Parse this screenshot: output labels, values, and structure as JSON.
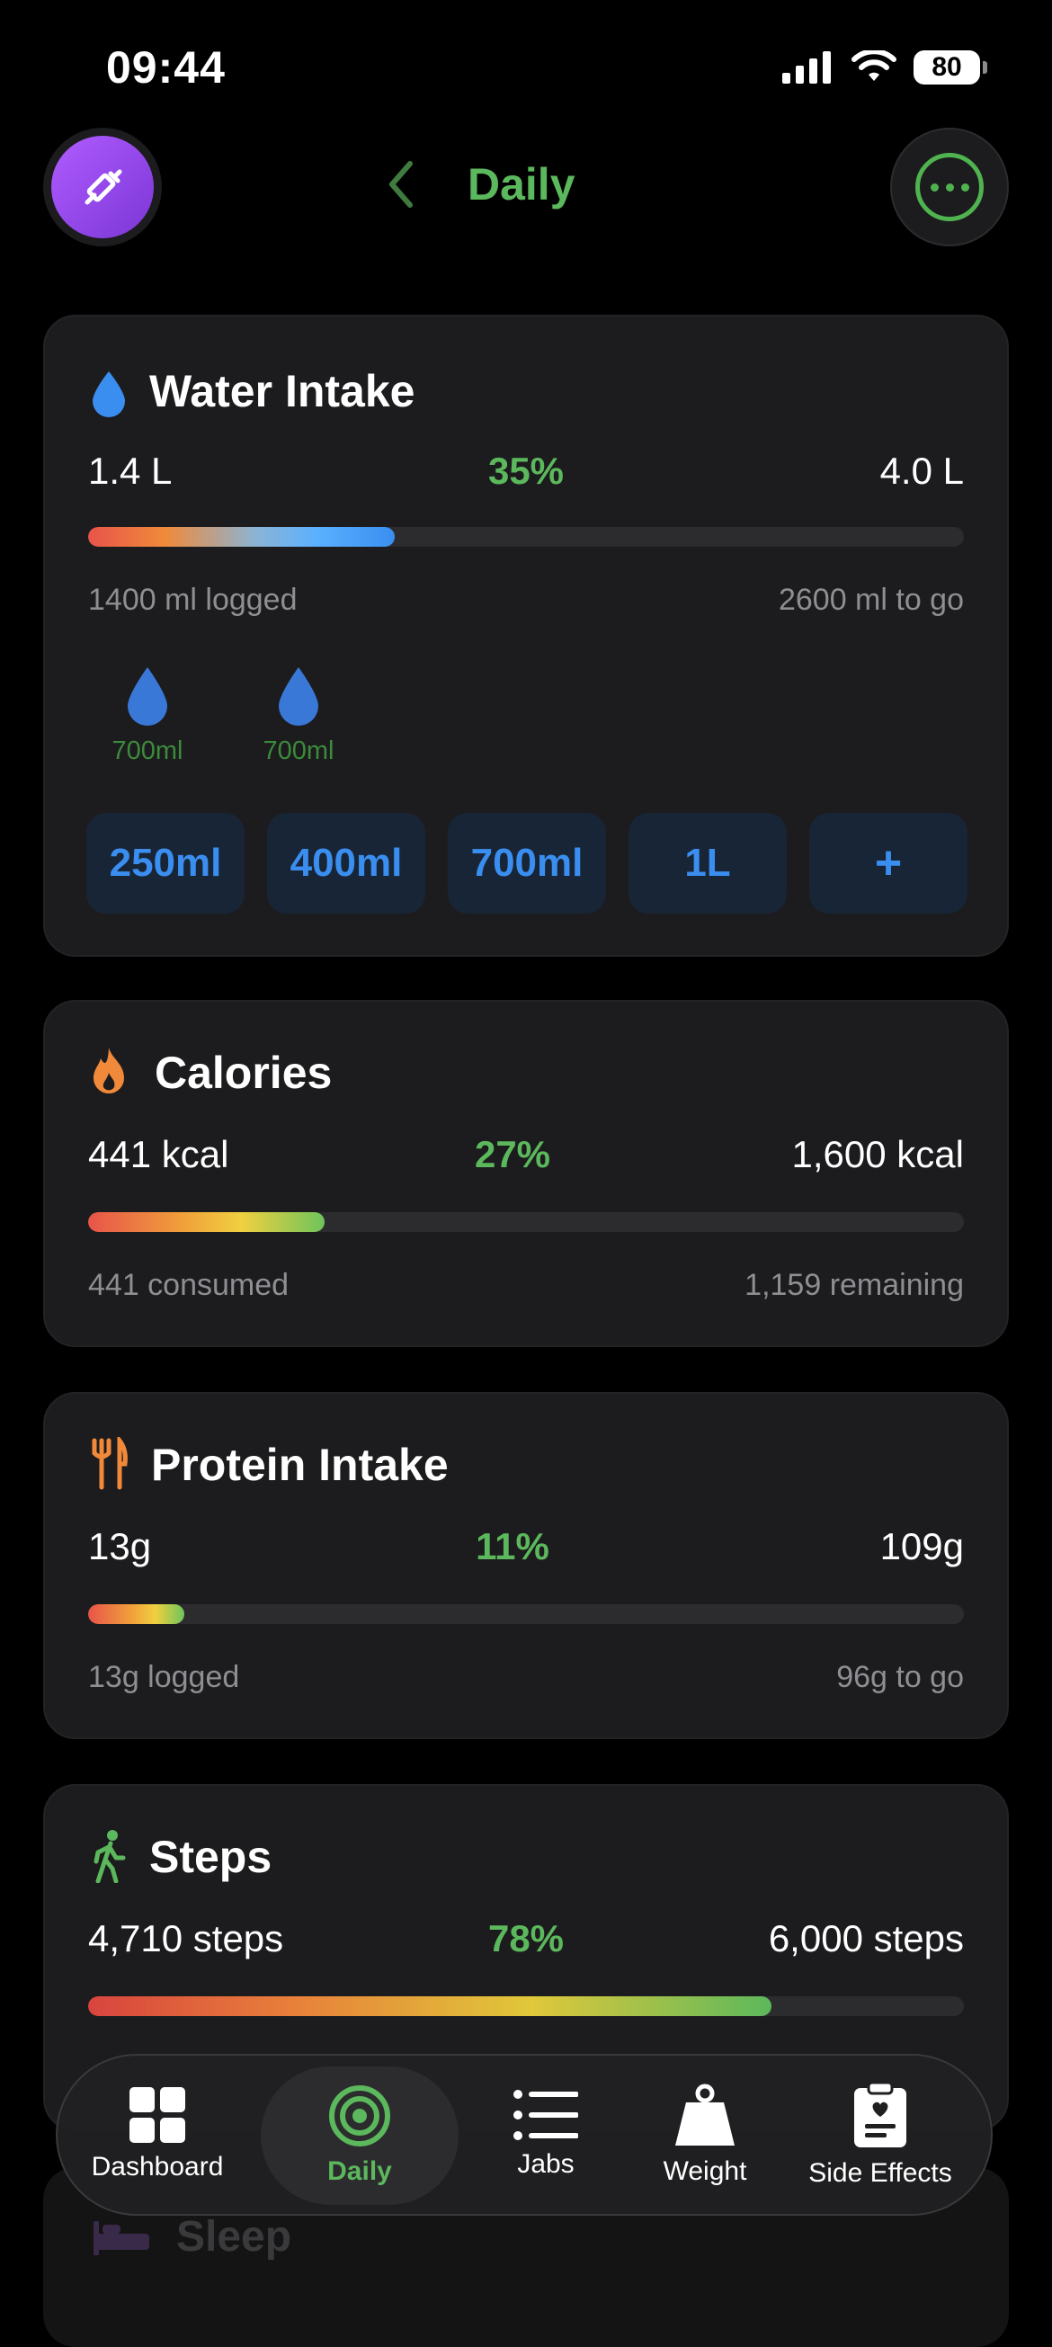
{
  "status_bar": {
    "time": "09:44",
    "battery": "80"
  },
  "header": {
    "title": "Daily"
  },
  "water": {
    "title": "Water Intake",
    "current": "1.4 L",
    "percent": "35%",
    "goal": "4.0 L",
    "progress": 0.35,
    "logged_text": "1400 ml logged",
    "remaining_text": "2600 ml to go",
    "entries": [
      {
        "amount": "700ml"
      },
      {
        "amount": "700ml"
      }
    ],
    "quick_add": [
      "250ml",
      "400ml",
      "700ml",
      "1L",
      "+"
    ]
  },
  "calories": {
    "title": "Calories",
    "current": "441 kcal",
    "percent": "27%",
    "goal": "1,600 kcal",
    "progress": 0.27,
    "logged_text": "441 consumed",
    "remaining_text": "1,159 remaining"
  },
  "protein": {
    "title": "Protein Intake",
    "current": "13g",
    "percent": "11%",
    "goal": "109g",
    "progress": 0.11,
    "logged_text": "13g logged",
    "remaining_text": "96g to go"
  },
  "steps": {
    "title": "Steps",
    "current": "4,710 steps",
    "percent": "78%",
    "goal": "6,000 steps",
    "progress": 0.78
  },
  "sleep": {
    "title": "Sleep"
  },
  "tab_bar": {
    "items": [
      {
        "label": "Dashboard",
        "icon": "grid-icon"
      },
      {
        "label": "Daily",
        "icon": "target-icon",
        "active": true
      },
      {
        "label": "Jabs",
        "icon": "list-icon"
      },
      {
        "label": "Weight",
        "icon": "weight-icon"
      },
      {
        "label": "Side Effects",
        "icon": "clipboard-heart-icon"
      }
    ]
  },
  "colors": {
    "accent": "#5cb85c",
    "water": "#3a8ef0",
    "card": "#1c1c1e"
  }
}
